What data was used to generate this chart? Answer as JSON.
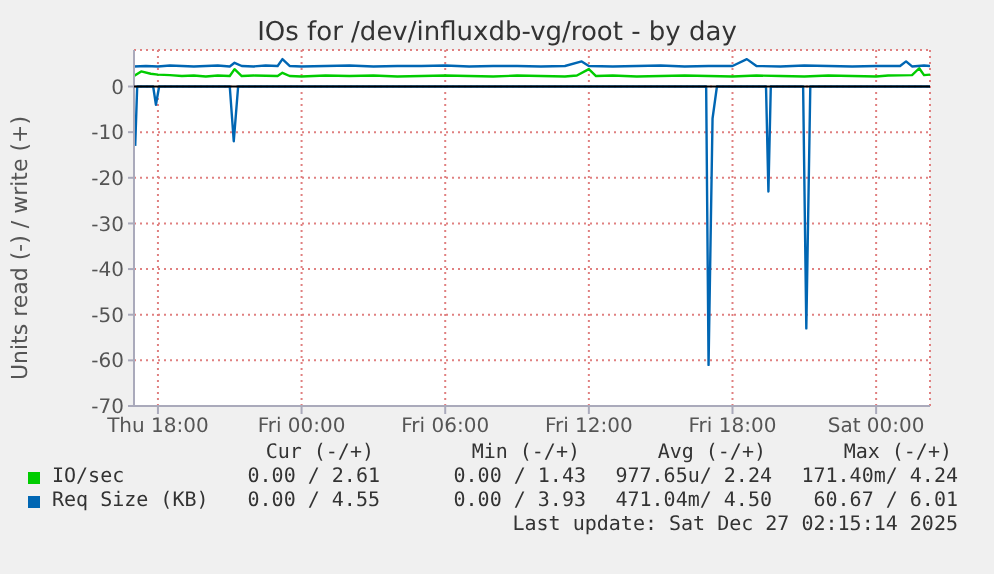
{
  "chart_data": {
    "type": "line",
    "title": "IOs for /dev/influxdb-vg/root - by day",
    "ylabel": "Units read (-) / write (+)",
    "xlim": [
      "2025-12-25T17:00",
      "2025-12-27T02:15"
    ],
    "xticks": [
      {
        "value": "2025-12-25T18:00",
        "label": "Thu 18:00"
      },
      {
        "value": "2025-12-26T00:00",
        "label": "Fri 00:00"
      },
      {
        "value": "2025-12-26T06:00",
        "label": "Fri 06:00"
      },
      {
        "value": "2025-12-26T12:00",
        "label": "Fri 12:00"
      },
      {
        "value": "2025-12-26T18:00",
        "label": "Fri 18:00"
      },
      {
        "value": "2025-12-27T00:00",
        "label": "Sat 00:00"
      }
    ],
    "ylim": [
      -70,
      8
    ],
    "yticks": [
      -70,
      -60,
      -50,
      -40,
      -30,
      -20,
      -10,
      0
    ],
    "grid": true,
    "legend": "bottom",
    "marker": "none",
    "ref_lines": [
      {
        "axis": "y",
        "value": 0,
        "color": "#000000"
      }
    ],
    "series": [
      {
        "name": "IO/sec",
        "color": "#00cc00",
        "x": [
          "2025-12-25T17:00",
          "2025-12-25T17:18",
          "2025-12-25T17:42",
          "2025-12-25T18:00",
          "2025-12-25T18:30",
          "2025-12-25T19:00",
          "2025-12-25T19:30",
          "2025-12-25T20:00",
          "2025-12-25T20:30",
          "2025-12-25T21:00",
          "2025-12-25T21:12",
          "2025-12-25T21:30",
          "2025-12-25T22:00",
          "2025-12-25T23:00",
          "2025-12-25T23:12",
          "2025-12-25T23:30",
          "2025-12-26T00:00",
          "2025-12-26T01:00",
          "2025-12-26T02:00",
          "2025-12-26T03:00",
          "2025-12-26T04:00",
          "2025-12-26T05:00",
          "2025-12-26T06:00",
          "2025-12-26T07:00",
          "2025-12-26T08:00",
          "2025-12-26T09:00",
          "2025-12-26T10:00",
          "2025-12-26T11:00",
          "2025-12-26T11:30",
          "2025-12-26T12:00",
          "2025-12-26T12:18",
          "2025-12-26T13:00",
          "2025-12-26T14:00",
          "2025-12-26T15:00",
          "2025-12-26T16:00",
          "2025-12-26T17:00",
          "2025-12-26T18:00",
          "2025-12-26T19:00",
          "2025-12-26T20:00",
          "2025-12-26T21:00",
          "2025-12-26T22:00",
          "2025-12-26T23:00",
          "2025-12-27T00:00",
          "2025-12-27T00:30",
          "2025-12-27T01:30",
          "2025-12-27T01:48",
          "2025-12-27T02:00",
          "2025-12-27T02:15"
        ],
        "values": [
          2.3,
          3.3,
          2.8,
          2.6,
          2.5,
          2.3,
          2.4,
          2.2,
          2.4,
          2.3,
          3.8,
          2.3,
          2.4,
          2.3,
          3,
          2.3,
          2.2,
          2.4,
          2.3,
          2.4,
          2.2,
          2.3,
          2.4,
          2.3,
          2.2,
          2.4,
          2.3,
          2.2,
          2.4,
          3.8,
          2.3,
          2.4,
          2.2,
          2.3,
          2.4,
          2.3,
          2.2,
          2.4,
          2.3,
          2.2,
          2.4,
          2.3,
          2.2,
          2.4,
          2.5,
          4,
          2.5,
          2.6
        ]
      },
      {
        "name": "Req Size (KB)",
        "color": "#0066b3",
        "x": [
          "2025-12-25T17:00",
          "2025-12-25T17:30",
          "2025-12-25T18:00",
          "2025-12-25T18:30",
          "2025-12-25T19:00",
          "2025-12-25T19:30",
          "2025-12-25T20:00",
          "2025-12-25T20:30",
          "2025-12-25T21:00",
          "2025-12-25T21:12",
          "2025-12-25T21:30",
          "2025-12-25T22:00",
          "2025-12-25T22:30",
          "2025-12-25T23:00",
          "2025-12-25T23:12",
          "2025-12-25T23:30",
          "2025-12-26T00:00",
          "2025-12-26T01:00",
          "2025-12-26T02:00",
          "2025-12-26T03:00",
          "2025-12-26T04:00",
          "2025-12-26T05:00",
          "2025-12-26T06:00",
          "2025-12-26T07:00",
          "2025-12-26T08:00",
          "2025-12-26T09:00",
          "2025-12-26T10:00",
          "2025-12-26T11:00",
          "2025-12-26T11:42",
          "2025-12-26T12:00",
          "2025-12-26T13:00",
          "2025-12-26T14:00",
          "2025-12-26T15:00",
          "2025-12-26T16:00",
          "2025-12-26T17:00",
          "2025-12-26T18:00",
          "2025-12-26T18:36",
          "2025-12-26T19:00",
          "2025-12-26T20:00",
          "2025-12-26T21:00",
          "2025-12-26T22:00",
          "2025-12-26T23:00",
          "2025-12-27T00:00",
          "2025-12-27T01:00",
          "2025-12-27T01:15",
          "2025-12-27T01:30",
          "2025-12-27T02:00",
          "2025-12-27T02:15"
        ],
        "values": [
          4.4,
          4.5,
          4.4,
          4.6,
          4.5,
          4.4,
          4.5,
          4.6,
          4.4,
          5.2,
          4.5,
          4.4,
          4.6,
          4.5,
          6,
          4.5,
          4.4,
          4.5,
          4.6,
          4.4,
          4.5,
          4.5,
          4.6,
          4.4,
          4.5,
          4.5,
          4.4,
          4.5,
          5.5,
          4.5,
          4.4,
          4.5,
          4.6,
          4.4,
          4.5,
          4.5,
          6,
          4.5,
          4.4,
          4.6,
          4.5,
          4.4,
          4.5,
          4.5,
          5.5,
          4.4,
          4.6,
          4.5
        ]
      },
      {
        "color": "#0066b3",
        "x": [
          "2025-12-25T17:03",
          "2025-12-25T17:08",
          "2025-12-25T17:48",
          "2025-12-25T17:55",
          "2025-12-25T18:03",
          "2025-12-25T21:00",
          "2025-12-25T21:10",
          "2025-12-25T21:21",
          "2025-12-26T16:54",
          "2025-12-26T17:00",
          "2025-12-26T17:10",
          "2025-12-26T17:21",
          "2025-12-26T19:24",
          "2025-12-26T19:30",
          "2025-12-26T19:36",
          "2025-12-26T20:57",
          "2025-12-26T21:05",
          "2025-12-26T21:15",
          "2025-12-27T02:15"
        ],
        "values": [
          -13,
          0,
          0,
          -4,
          0,
          0,
          -12,
          0,
          0,
          -61,
          -7,
          0,
          0,
          -23,
          0,
          0,
          -53,
          0,
          0
        ]
      }
    ],
    "annotations": [
      "Cur (-/+)",
      "Min (-/+)",
      "Avg (-/+)",
      "Max (-/+)",
      "0.00 / 2.61",
      "0.00 / 1.43",
      "977.65u/ 2.24",
      "171.40m/ 4.24",
      "0.00 / 4.55",
      "0.00 / 3.93",
      "471.04m/ 4.50",
      "60.67 / 6.01",
      "Last update: Sat Dec 27 02:15:14 2025"
    ]
  }
}
